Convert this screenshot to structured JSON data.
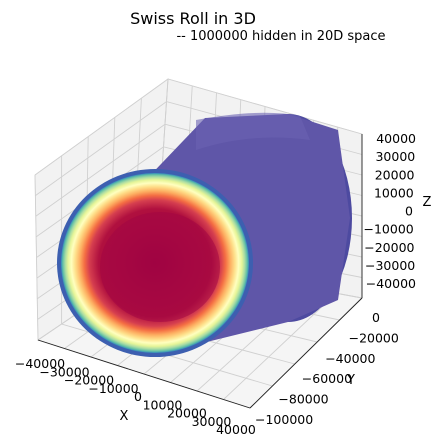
{
  "chart_data": {
    "type": "scatter",
    "projection": "3d",
    "title": "Swiss Roll in 3D",
    "subtitle": "-- 1000000 hidden in 20D space",
    "xlabel": "X",
    "ylabel": "Y",
    "zlabel": "Z",
    "x_ticks": [
      "−40000",
      "−30000",
      "−20000",
      "−10000",
      "0",
      "10000",
      "20000",
      "30000",
      "40000"
    ],
    "y_ticks": [
      "0",
      "−20000",
      "−40000",
      "−60000",
      "−80000",
      "−100000"
    ],
    "z_ticks": [
      "40000",
      "30000",
      "20000",
      "10000",
      "0",
      "−10000",
      "−20000",
      "−30000",
      "−40000"
    ],
    "xlim": [
      -40000,
      40000
    ],
    "ylim": [
      -100000,
      0
    ],
    "zlim": [
      -40000,
      40000
    ],
    "grid": true,
    "colormap": "Spectral_r",
    "colors": {
      "pane": "#f2f2f2",
      "grid": "#d0d0d0",
      "body": "#5f56a8",
      "body_dark": "#4d4aa0",
      "ring": [
        "#5e4fa2",
        "#3288bd",
        "#66c2a5",
        "#abdda4",
        "#e6f598",
        "#fee08b",
        "#fdae61",
        "#f46d43",
        "#d53e4f",
        "#9e0142"
      ]
    }
  }
}
